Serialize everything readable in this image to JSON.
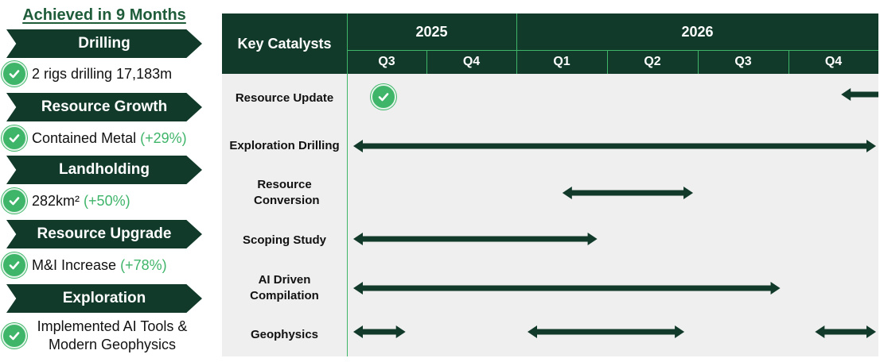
{
  "left_panel": {
    "title": "Achieved in 9 Months",
    "sections": [
      {
        "banner": "Drilling",
        "text": "2 rigs drilling 17,183m",
        "highlight": ""
      },
      {
        "banner": "Resource Growth",
        "text": "Contained Metal",
        "highlight": "(+29%)"
      },
      {
        "banner": "Landholding",
        "text": "282km²",
        "highlight": "(+50%)"
      },
      {
        "banner": "Resource Upgrade",
        "text": "M&I Increase",
        "highlight": "(+78%)"
      },
      {
        "banner": "Exploration",
        "text": "Implemented AI Tools & Modern Geophysics",
        "highlight": ""
      }
    ]
  },
  "timeline": {
    "header_label": "Key Catalysts",
    "years": [
      "2025",
      "2026"
    ],
    "quarters": [
      "Q3",
      "Q4",
      "Q1",
      "Q2",
      "Q3",
      "Q4"
    ],
    "rows": [
      {
        "label": "Resource Update",
        "completed_marker": "check-icon",
        "bars": [
          [
            5.6,
            6.2
          ]
        ]
      },
      {
        "label": "Exploration Drilling",
        "bars": [
          [
            0.0,
            6.0
          ]
        ]
      },
      {
        "label": "Resource Conversion",
        "bars": [
          [
            2.4,
            3.9
          ]
        ]
      },
      {
        "label": "Scoping Study",
        "bars": [
          [
            0.0,
            2.8
          ]
        ]
      },
      {
        "label": "AI Driven Compilation",
        "bars": [
          [
            0.0,
            4.9
          ]
        ]
      },
      {
        "label": "Geophysics",
        "bars": [
          [
            0.0,
            0.6
          ],
          [
            2.0,
            3.8
          ],
          [
            5.3,
            6.0
          ]
        ]
      }
    ],
    "colors": {
      "header": "#123a2a",
      "accent": "#3fb56a",
      "arrow": "#123a2a",
      "body": "#efefef"
    }
  }
}
